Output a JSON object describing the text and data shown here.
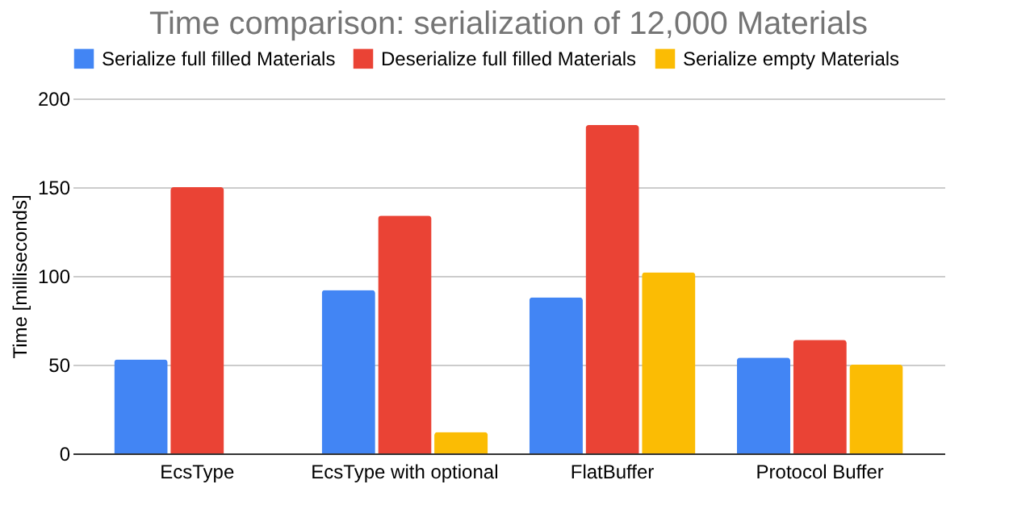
{
  "chart_data": {
    "type": "bar",
    "title": "Time comparison: serialization of 12,000 Materials",
    "ylabel": "Time [milliseconds]",
    "categories": [
      "EcsType",
      "EcsType with optional",
      "FlatBuffer",
      "Protocol Buffer"
    ],
    "series": [
      {
        "name": "Serialize full filled Materials",
        "color": "#4285f4",
        "values": [
          53,
          92,
          88,
          54
        ]
      },
      {
        "name": "Deserialize full filled Materials",
        "color": "#ea4335",
        "values": [
          150,
          134,
          185,
          64
        ]
      },
      {
        "name": "Serialize empty Materials",
        "color": "#fbbc04",
        "values": [
          null,
          12,
          102,
          50
        ]
      }
    ],
    "ylim": [
      0,
      200
    ],
    "yticks": [
      0,
      50,
      100,
      150,
      200
    ],
    "grid": "y",
    "legend": "top"
  }
}
